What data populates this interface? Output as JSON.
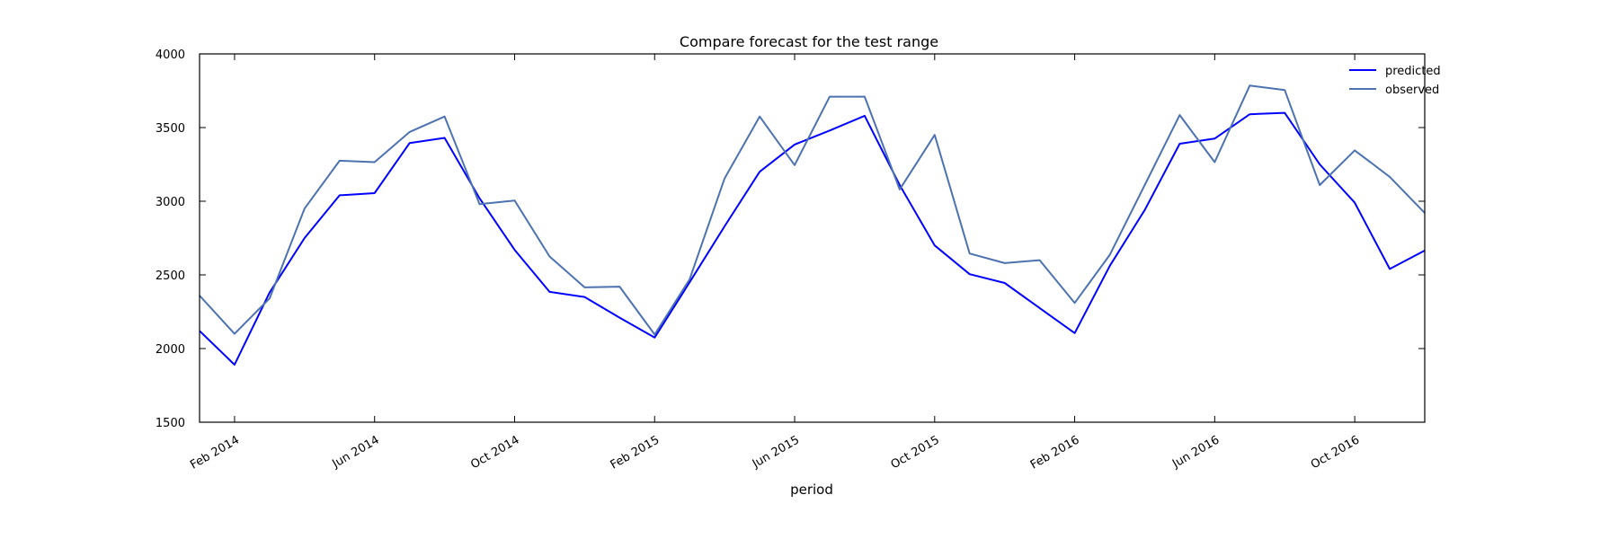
{
  "chart_data": {
    "type": "line",
    "title": "Compare forecast for the test range",
    "xlabel": "period",
    "ylabel": "",
    "x": [
      "2014-01",
      "2014-02",
      "2014-03",
      "2014-04",
      "2014-05",
      "2014-06",
      "2014-07",
      "2014-08",
      "2014-09",
      "2014-10",
      "2014-11",
      "2014-12",
      "2015-01",
      "2015-02",
      "2015-03",
      "2015-04",
      "2015-05",
      "2015-06",
      "2015-07",
      "2015-08",
      "2015-09",
      "2015-10",
      "2015-11",
      "2015-12",
      "2016-01",
      "2016-02",
      "2016-03",
      "2016-04",
      "2016-05",
      "2016-06",
      "2016-07",
      "2016-08",
      "2016-09",
      "2016-10",
      "2016-11",
      "2016-12"
    ],
    "xlim": [
      "2014-01",
      "2016-12"
    ],
    "ylim": [
      1500,
      4000
    ],
    "yticks": [
      1500,
      2000,
      2500,
      3000,
      3500,
      4000
    ],
    "xticks": [
      {
        "value": "2014-02",
        "label": "Feb 2014"
      },
      {
        "value": "2014-06",
        "label": "Jun 2014"
      },
      {
        "value": "2014-10",
        "label": "Oct 2014"
      },
      {
        "value": "2015-02",
        "label": "Feb 2015"
      },
      {
        "value": "2015-06",
        "label": "Jun 2015"
      },
      {
        "value": "2015-10",
        "label": "Oct 2015"
      },
      {
        "value": "2016-02",
        "label": "Feb 2016"
      },
      {
        "value": "2016-06",
        "label": "Jun 2016"
      },
      {
        "value": "2016-10",
        "label": "Oct 2016"
      }
    ],
    "grid": false,
    "legend_position": "top-right",
    "series": [
      {
        "name": "predicted",
        "color": "#0000ff",
        "values": [
          2120,
          1890,
          2380,
          2750,
          3040,
          3055,
          3395,
          3430,
          3020,
          2670,
          2385,
          2350,
          2210,
          2075,
          2450,
          2830,
          3200,
          3385,
          3480,
          3580,
          3110,
          2700,
          2505,
          2445,
          2275,
          2105,
          2560,
          2940,
          3390,
          3425,
          3590,
          3600,
          3250,
          2990,
          2540,
          2665
        ]
      },
      {
        "name": "observed",
        "color": "#4c72b0",
        "values": [
          2360,
          2100,
          2340,
          2950,
          3275,
          3265,
          3470,
          3575,
          2980,
          3005,
          2625,
          2415,
          2420,
          2095,
          2470,
          3155,
          3575,
          3245,
          3710,
          3710,
          3080,
          3450,
          2645,
          2580,
          2600,
          2310,
          2635,
          3110,
          3585,
          3265,
          3785,
          3755,
          3110,
          3345,
          3165,
          2920
        ]
      }
    ]
  }
}
